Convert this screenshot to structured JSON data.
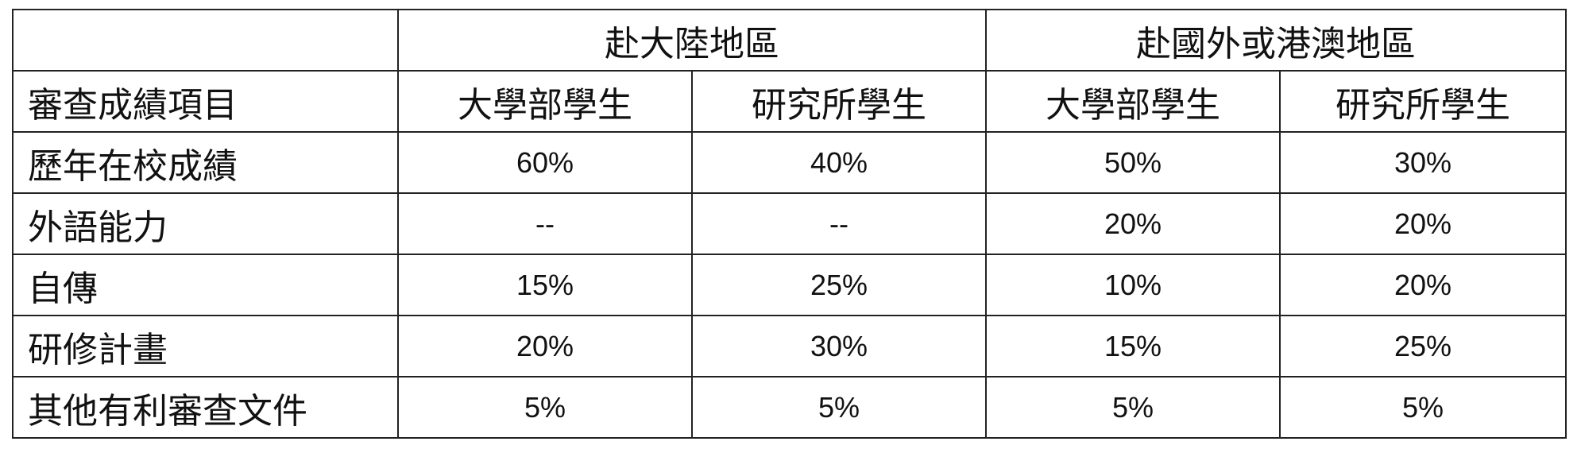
{
  "table": {
    "group_headers": [
      "赴大陸地區",
      "赴國外或港澳地區"
    ],
    "row_header_label": "審查成績項目",
    "sub_headers": [
      "大學部學生",
      "研究所學生",
      "大學部學生",
      "研究所學生"
    ],
    "rows": [
      {
        "label": "歷年在校成績",
        "values": [
          "60%",
          "40%",
          "50%",
          "30%"
        ]
      },
      {
        "label": "外語能力",
        "values": [
          "--",
          "--",
          "20%",
          "20%"
        ]
      },
      {
        "label": "自傳",
        "values": [
          "15%",
          "25%",
          "10%",
          "20%"
        ]
      },
      {
        "label": "研修計畫",
        "values": [
          "20%",
          "30%",
          "15%",
          "25%"
        ]
      },
      {
        "label": "其他有利審查文件",
        "values": [
          "5%",
          "5%",
          "5%",
          "5%"
        ]
      }
    ]
  }
}
